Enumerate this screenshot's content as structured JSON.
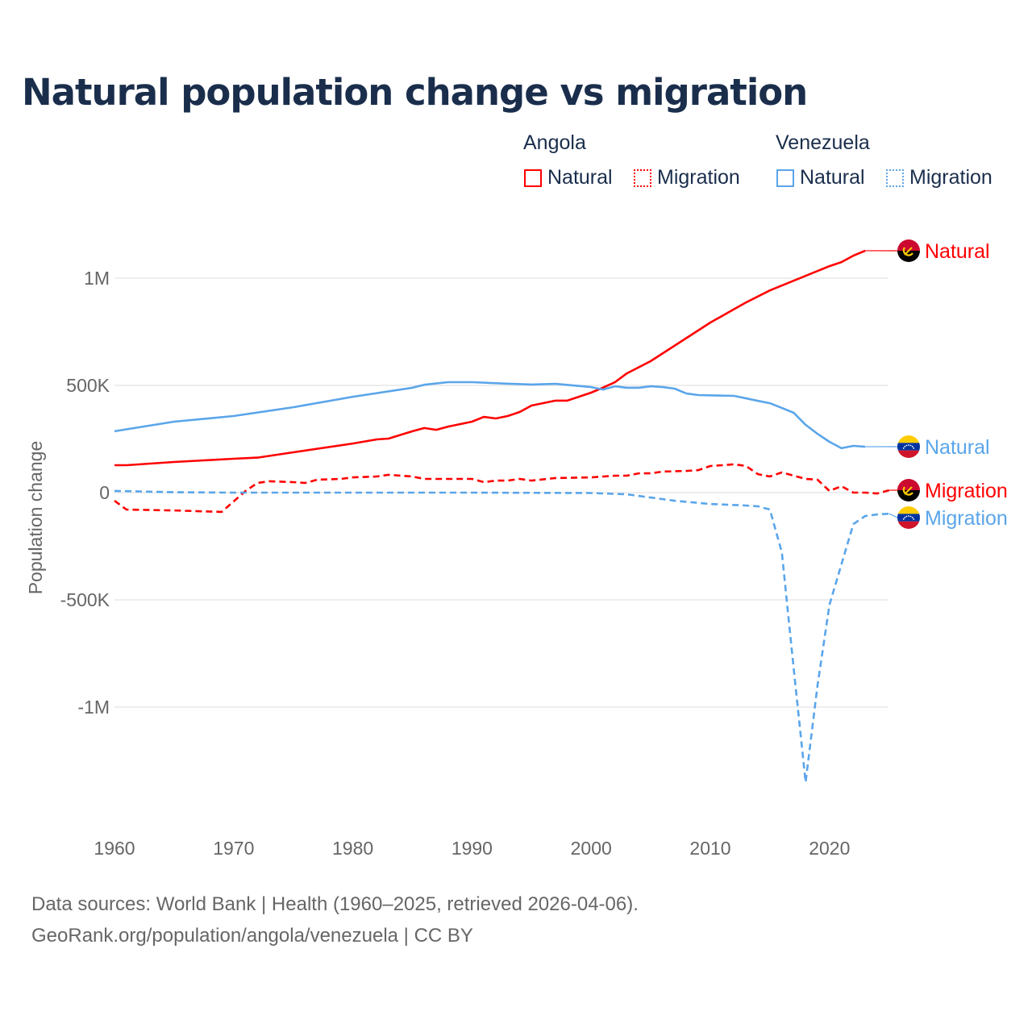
{
  "colors": {
    "angola": "#ff0000",
    "venezuela": "#5aa5ea",
    "title": "#1a2e4c",
    "grid": "#e8e8e8",
    "axis_text": "#666666"
  },
  "chart_data": {
    "type": "line",
    "title": "Natural population change vs migration",
    "ylabel": "Population change",
    "xlabel": "",
    "xlim": [
      1960,
      2025
    ],
    "ylim": [
      -1400000,
      1250000
    ],
    "x_ticks": [
      1960,
      1970,
      1980,
      1990,
      2000,
      2010,
      2020
    ],
    "x_tick_labels": [
      "1960",
      "1970",
      "1980",
      "1990",
      "2000",
      "2010",
      "2020"
    ],
    "y_ticks": [
      -1000000,
      -500000,
      0,
      500000,
      1000000
    ],
    "y_tick_labels": [
      "-1M",
      "-500K",
      "0",
      "500K",
      "1M"
    ],
    "grid": true,
    "legend": {
      "placement": "top-right",
      "groups": [
        {
          "title": "Angola",
          "items": [
            {
              "label": "Natural",
              "style": "solid"
            },
            {
              "label": "Migration",
              "style": "dotted"
            }
          ]
        },
        {
          "title": "Venezuela",
          "items": [
            {
              "label": "Natural",
              "style": "solid"
            },
            {
              "label": "Migration",
              "style": "dotted"
            }
          ]
        }
      ]
    },
    "series": [
      {
        "name": "Angola Natural",
        "country": "Angola",
        "kind": "Natural",
        "end_label": "Natural",
        "color": "#ff0000",
        "dash": false,
        "points": [
          [
            1960,
            128
          ],
          [
            1961,
            128
          ],
          [
            1965,
            143
          ],
          [
            1970,
            158
          ],
          [
            1972,
            163
          ],
          [
            1975,
            188
          ],
          [
            1980,
            229
          ],
          [
            1982,
            248
          ],
          [
            1983,
            252
          ],
          [
            1985,
            286
          ],
          [
            1986,
            301
          ],
          [
            1987,
            293
          ],
          [
            1988,
            308
          ],
          [
            1990,
            331
          ],
          [
            1991,
            353
          ],
          [
            1992,
            346
          ],
          [
            1993,
            357
          ],
          [
            1994,
            376
          ],
          [
            1995,
            406
          ],
          [
            1997,
            429
          ],
          [
            1998,
            429
          ],
          [
            2000,
            466
          ],
          [
            2001,
            490
          ],
          [
            2002,
            515
          ],
          [
            2003,
            556
          ],
          [
            2005,
            613
          ],
          [
            2010,
            793
          ],
          [
            2013,
            887
          ],
          [
            2015,
            943
          ],
          [
            2020,
            1056
          ],
          [
            2021,
            1075
          ],
          [
            2022,
            1105
          ],
          [
            2023,
            1128
          ]
        ]
      },
      {
        "name": "Venezuela Natural",
        "country": "Venezuela",
        "kind": "Natural",
        "end_label": "Natural",
        "color": "#5aa5ea",
        "dash": false,
        "points": [
          [
            1960,
            286
          ],
          [
            1965,
            331
          ],
          [
            1970,
            357
          ],
          [
            1975,
            398
          ],
          [
            1980,
            447
          ],
          [
            1985,
            489
          ],
          [
            1986,
            503
          ],
          [
            1988,
            515
          ],
          [
            1990,
            515
          ],
          [
            1993,
            508
          ],
          [
            1995,
            504
          ],
          [
            1997,
            507
          ],
          [
            2000,
            492
          ],
          [
            2001,
            481
          ],
          [
            2002,
            496
          ],
          [
            2003,
            489
          ],
          [
            2004,
            489
          ],
          [
            2005,
            496
          ],
          [
            2006,
            492
          ],
          [
            2007,
            485
          ],
          [
            2008,
            462
          ],
          [
            2009,
            455
          ],
          [
            2012,
            451
          ],
          [
            2014,
            428
          ],
          [
            2015,
            417
          ],
          [
            2016,
            395
          ],
          [
            2017,
            372
          ],
          [
            2018,
            316
          ],
          [
            2019,
            274
          ],
          [
            2020,
            237
          ],
          [
            2021,
            207
          ],
          [
            2022,
            218
          ],
          [
            2023,
            214
          ]
        ]
      },
      {
        "name": "Angola Migration",
        "country": "Angola",
        "kind": "Migration",
        "end_label": "Migration",
        "color": "#ff0000",
        "dash": true,
        "points": [
          [
            1960,
            -38
          ],
          [
            1961,
            -79
          ],
          [
            1965,
            -83
          ],
          [
            1969,
            -90
          ],
          [
            1970,
            -41
          ],
          [
            1971,
            8
          ],
          [
            1972,
            45
          ],
          [
            1973,
            53
          ],
          [
            1975,
            49
          ],
          [
            1976,
            45
          ],
          [
            1977,
            60
          ],
          [
            1979,
            64
          ],
          [
            1980,
            71
          ],
          [
            1982,
            75
          ],
          [
            1983,
            83
          ],
          [
            1985,
            75
          ],
          [
            1986,
            64
          ],
          [
            1990,
            64
          ],
          [
            1991,
            49
          ],
          [
            1992,
            56
          ],
          [
            1993,
            56
          ],
          [
            1994,
            64
          ],
          [
            1995,
            56
          ],
          [
            1997,
            68
          ],
          [
            2000,
            71
          ],
          [
            2002,
            79
          ],
          [
            2003,
            79
          ],
          [
            2004,
            90
          ],
          [
            2005,
            90
          ],
          [
            2006,
            98
          ],
          [
            2008,
            101
          ],
          [
            2009,
            105
          ],
          [
            2010,
            124
          ],
          [
            2011,
            128
          ],
          [
            2012,
            132
          ],
          [
            2013,
            124
          ],
          [
            2014,
            86
          ],
          [
            2015,
            75
          ],
          [
            2016,
            94
          ],
          [
            2017,
            79
          ],
          [
            2018,
            64
          ],
          [
            2019,
            60
          ],
          [
            2020,
            8
          ],
          [
            2021,
            30
          ],
          [
            2022,
            0
          ],
          [
            2023,
            0
          ],
          [
            2024,
            -4
          ],
          [
            2025,
            11
          ]
        ]
      },
      {
        "name": "Venezuela Migration",
        "country": "Venezuela",
        "kind": "Migration",
        "end_label": "Migration",
        "color": "#5aa5ea",
        "dash": true,
        "points": [
          [
            1960,
            8
          ],
          [
            1965,
            2
          ],
          [
            1970,
            0
          ],
          [
            1980,
            0
          ],
          [
            1990,
            0
          ],
          [
            2000,
            -2
          ],
          [
            2003,
            -8
          ],
          [
            2005,
            -23
          ],
          [
            2007,
            -38
          ],
          [
            2010,
            -53
          ],
          [
            2013,
            -60
          ],
          [
            2014,
            -64
          ],
          [
            2015,
            -79
          ],
          [
            2016,
            -278
          ],
          [
            2017,
            -823
          ],
          [
            2018,
            -1350
          ],
          [
            2019,
            -898
          ],
          [
            2020,
            -523
          ],
          [
            2021,
            -335
          ],
          [
            2022,
            -147
          ],
          [
            2023,
            -109
          ],
          [
            2024,
            -102
          ],
          [
            2025,
            -98
          ]
        ]
      }
    ],
    "value_unit": "thousands"
  },
  "footer": {
    "line1": "Data sources: World Bank | Health (1960–2025, retrieved 2026-04-06).",
    "line2": "GeoRank.org/population/angola/venezuela | CC BY"
  }
}
